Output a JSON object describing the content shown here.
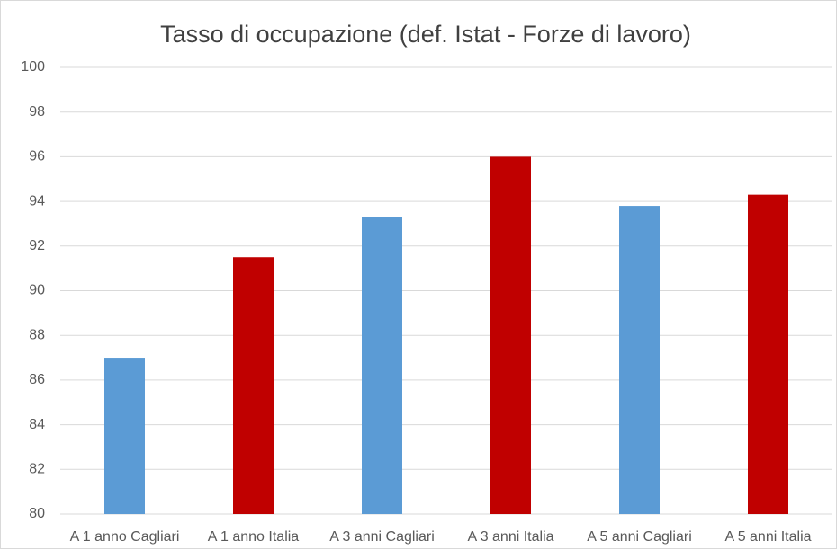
{
  "chart_data": {
    "type": "bar",
    "title": "Tasso di occupazione (def. Istat - Forze di lavoro)",
    "categories": [
      "A 1 anno Cagliari",
      "A 1 anno Italia",
      "A 3 anni Cagliari",
      "A 3 anni Italia",
      "A 5 anni Cagliari",
      "A 5 anni Italia"
    ],
    "values": [
      87.0,
      91.5,
      93.3,
      96.0,
      93.8,
      94.3
    ],
    "colors": [
      "#5b9bd5",
      "#c00000",
      "#5b9bd5",
      "#c00000",
      "#5b9bd5",
      "#c00000"
    ],
    "ylim": [
      80,
      100
    ],
    "yticks": [
      80,
      82,
      84,
      86,
      88,
      90,
      92,
      94,
      96,
      98,
      100
    ],
    "grid": true
  }
}
